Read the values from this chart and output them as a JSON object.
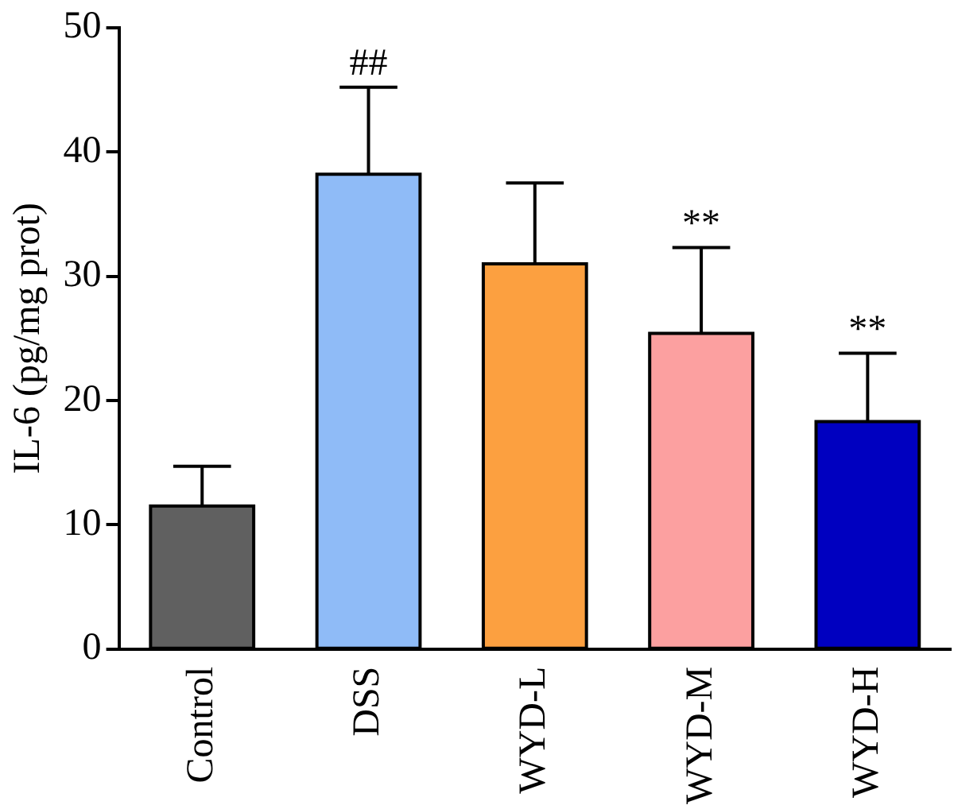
{
  "chart_data": {
    "type": "bar",
    "ylabel": "IL-6 (pg/mg prot)",
    "categories": [
      "Control",
      "DSS",
      "WYD-L",
      "WYD-M",
      "WYD-H"
    ],
    "values": [
      11.5,
      38.2,
      31.0,
      25.4,
      18.3
    ],
    "colors": [
      "#606060",
      "#8fbbf7",
      "#fca040",
      "#fca0a0",
      "#0000c0"
    ],
    "errors": [
      [
        11.5,
        14.7
      ],
      [
        38.2,
        45.2
      ],
      [
        31.0,
        37.5
      ],
      [
        25.4,
        32.3
      ],
      [
        18.3,
        23.8
      ]
    ],
    "ylim": [
      0,
      50
    ],
    "yticks": [
      0,
      10,
      20,
      30,
      40,
      50
    ],
    "grid": false,
    "legend": false,
    "annotations": [
      {
        "text": "##",
        "x": "DSS",
        "y": 45.2
      },
      {
        "text": "**",
        "x": "WYD-M",
        "y": 32.3
      },
      {
        "text": "**",
        "x": "WYD-H",
        "y": 23.8
      }
    ]
  }
}
